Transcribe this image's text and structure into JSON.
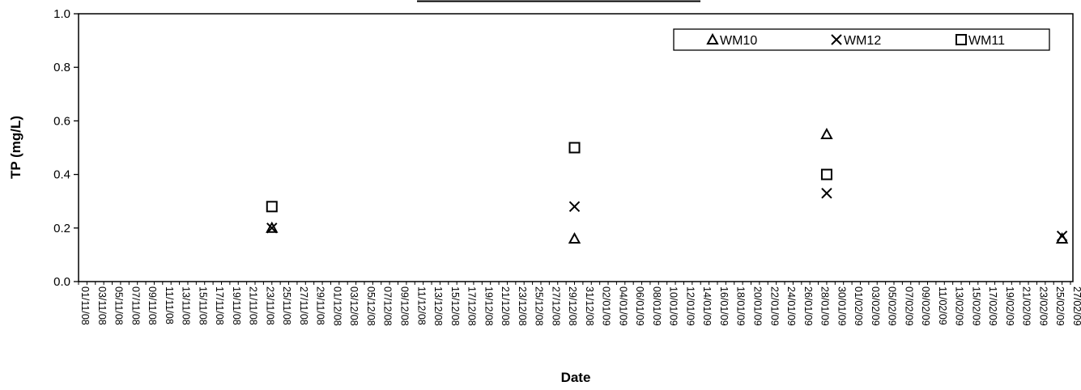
{
  "chart_data": {
    "type": "scatter",
    "title": "",
    "xlabel": "Date",
    "ylabel": "TP (mg/L)",
    "ylim": [
      0,
      1.0
    ],
    "y_ticks": [
      "0.0",
      "0.2",
      "0.4",
      "0.6",
      "0.8",
      "1.0"
    ],
    "x_axis": {
      "kind": "date",
      "range": [
        "2008-11-01",
        "2009-02-27"
      ],
      "tick_labels": [
        "01/11/08",
        "03/11/08",
        "05/11/08",
        "07/11/08",
        "09/11/08",
        "11/11/08",
        "13/11/08",
        "15/11/08",
        "17/11/08",
        "19/11/08",
        "21/11/08",
        "23/11/08",
        "25/11/08",
        "27/11/08",
        "29/11/08",
        "01/12/08",
        "03/12/08",
        "05/12/08",
        "07/12/08",
        "09/12/08",
        "11/12/08",
        "13/12/08",
        "15/12/08",
        "17/12/08",
        "19/12/08",
        "21/12/08",
        "23/12/08",
        "25/12/08",
        "27/12/08",
        "29/12/08",
        "31/12/08",
        "02/01/09",
        "04/01/09",
        "06/01/09",
        "08/01/09",
        "10/01/09",
        "12/01/09",
        "14/01/09",
        "16/01/09",
        "18/01/09",
        "20/01/09",
        "22/01/09",
        "24/01/09",
        "26/01/09",
        "28/01/09",
        "30/01/09",
        "01/02/09",
        "03/02/09",
        "05/02/09",
        "07/02/09",
        "09/02/09",
        "11/02/09",
        "13/02/09",
        "15/02/09",
        "17/02/09",
        "19/02/09",
        "21/02/09",
        "23/02/09",
        "25/02/09",
        "27/02/09"
      ]
    },
    "legend_position": "top-right",
    "grid": false,
    "series": [
      {
        "name": "WM10",
        "marker": "triangle",
        "points": [
          {
            "x": "2008-11-24",
            "y": 0.2
          },
          {
            "x": "2008-12-30",
            "y": 0.16
          },
          {
            "x": "2009-01-29",
            "y": 0.55
          },
          {
            "x": "2009-02-26",
            "y": 0.16
          }
        ]
      },
      {
        "name": "WM12",
        "marker": "x",
        "points": [
          {
            "x": "2008-11-24",
            "y": 0.2
          },
          {
            "x": "2008-12-30",
            "y": 0.28
          },
          {
            "x": "2009-01-29",
            "y": 0.33
          },
          {
            "x": "2009-02-26",
            "y": 0.17
          }
        ]
      },
      {
        "name": "WM11",
        "marker": "square",
        "points": [
          {
            "x": "2008-11-24",
            "y": 0.28
          },
          {
            "x": "2008-12-30",
            "y": 0.5
          },
          {
            "x": "2009-01-29",
            "y": 0.4
          }
        ]
      }
    ]
  }
}
